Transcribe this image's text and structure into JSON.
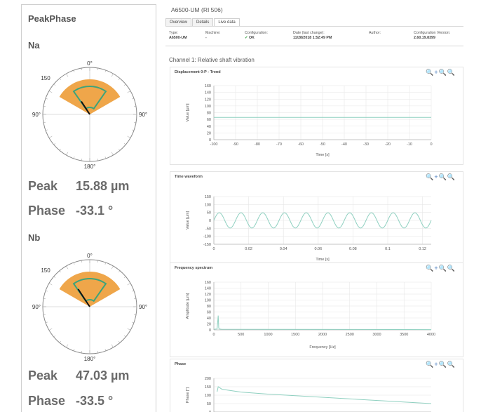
{
  "left": {
    "title": "PeakPhase",
    "channels": [
      {
        "name": "Na",
        "peak_label": "Peak",
        "peak_value": "15.88 µm",
        "phase_label": "Phase",
        "phase_value": "-33.1 °",
        "polar": {
          "top_label": "0°",
          "left_label": "90°",
          "right_label": "90°",
          "bottom_label": "180°",
          "scale_label": "150",
          "phase_deg": -33.1
        }
      },
      {
        "name": "Nb",
        "peak_label": "Peak",
        "peak_value": "47.03 µm",
        "phase_label": "Phase",
        "phase_value": "-33.5 °",
        "polar": {
          "top_label": "0°",
          "left_label": "90°",
          "right_label": "90°",
          "bottom_label": "180°",
          "scale_label": "150",
          "phase_deg": -33.5
        }
      }
    ]
  },
  "right": {
    "title": "A6500-UM (RI 506)",
    "tabs": [
      {
        "label": "Overview",
        "active": false
      },
      {
        "label": "Details",
        "active": false
      },
      {
        "label": "Live data",
        "active": true
      }
    ],
    "info": {
      "type_label": "Type:",
      "type_value": "A6500-UM",
      "machine_label": "Machine:",
      "machine_value": "-",
      "config_label": "Configuration:",
      "config_value": "OK",
      "date_label": "Date (last change):",
      "date_value": "11/28/2018 1:52:49 PM",
      "author_label": "Author:",
      "author_value": "",
      "version_label": "Configuration Version:",
      "version_value": "2.60.19.8399"
    },
    "channel_title": "Channel 1: Relative shaft vibration",
    "plot_tools": "🔍+🔍🔍",
    "colors": {
      "accent_orange": "#efa64a",
      "trace": "#8fd0c0",
      "arrow": "#111111",
      "green_outline": "#3fa37a"
    }
  },
  "chart_data": [
    {
      "type": "line",
      "title": "Displacement 0-P - Trend",
      "xlabel": "Time [s]",
      "ylabel": "Value [µm]",
      "xlim": [
        -100,
        0
      ],
      "ylim": [
        0,
        160
      ],
      "x_ticks": [
        -100,
        -90,
        -80,
        -70,
        -60,
        -50,
        -40,
        -30,
        -20,
        -10,
        0
      ],
      "y_ticks": [
        0,
        20,
        40,
        60,
        80,
        100,
        120,
        140,
        160
      ],
      "series": [
        {
          "x": [
            -100,
            0
          ],
          "y": [
            66,
            66
          ]
        }
      ]
    },
    {
      "type": "line",
      "title": "Time waveform",
      "xlabel": "Time [s]",
      "ylabel": "Value [µm]",
      "xlim": [
        0,
        0.125
      ],
      "ylim": [
        -150,
        150
      ],
      "x_ticks": [
        0.0,
        0.02,
        0.04,
        0.06,
        0.08,
        0.1,
        0.12
      ],
      "y_ticks": [
        -150,
        -100,
        -50,
        0,
        50,
        100,
        150
      ],
      "series": [
        {
          "function": "sine",
          "amplitude": 48,
          "frequency_hz": 80
        }
      ]
    },
    {
      "type": "line",
      "title": "Frequency spectrum",
      "xlabel": "Frequency [Hz]",
      "ylabel": "Amplitude [µm]",
      "xlim": [
        0,
        4000
      ],
      "ylim": [
        0,
        160
      ],
      "x_ticks": [
        0,
        500,
        1000,
        1500,
        2000,
        2500,
        3000,
        3500,
        4000
      ],
      "y_ticks": [
        0,
        20,
        40,
        60,
        80,
        100,
        120,
        140,
        160
      ],
      "series": [
        {
          "x": [
            0,
            60,
            80,
            90,
            100,
            140,
            4000
          ],
          "y": [
            2,
            3,
            48,
            6,
            3,
            2,
            1
          ]
        }
      ]
    },
    {
      "type": "line",
      "title": "Phase",
      "xlabel": "",
      "ylabel": "Phase [°]",
      "xlim": [
        0,
        4000
      ],
      "ylim": [
        0,
        200
      ],
      "y_ticks": [
        0,
        50,
        100,
        150,
        200
      ],
      "series": [
        {
          "x": [
            60,
            80,
            150,
            500,
            1000,
            4000
          ],
          "y": [
            120,
            150,
            135,
            118,
            106,
            50
          ]
        }
      ]
    }
  ]
}
